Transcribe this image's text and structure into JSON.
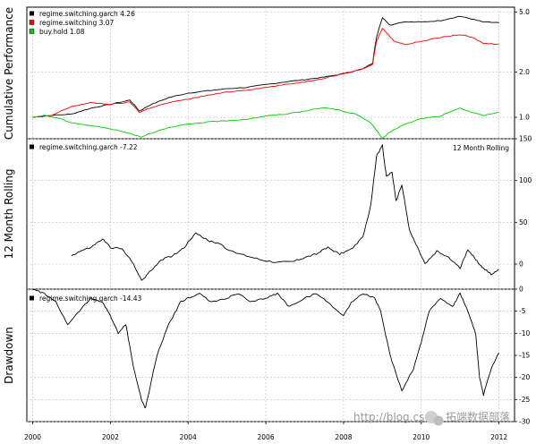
{
  "watermark": {
    "url": "http://blog.csdn",
    "brand": "拓端数据部落"
  },
  "chart_data": [
    {
      "type": "line",
      "ylabel": "Cumulative Performance",
      "log_scale": true,
      "yticks": [
        1.0,
        2.0,
        5.0
      ],
      "ytick_labels": [
        "1.0",
        "2.0",
        "5.0"
      ],
      "ylim": [
        0.72,
        5.4
      ],
      "legend_placement": "top-left",
      "legend": [
        {
          "label": "regime.switching.garch 4.26",
          "color": "#000000"
        },
        {
          "label": "regime.switching 3.07",
          "color": "#ff0000"
        },
        {
          "label": "buy.hold 1.08",
          "color": "#00cc00"
        }
      ],
      "series": [
        {
          "name": "regime.switching.garch",
          "color": "#000000",
          "x": [
            2000.0,
            2000.5,
            2001.0,
            2001.5,
            2002.0,
            2002.5,
            2002.75,
            2003.0,
            2003.5,
            2004.0,
            2004.5,
            2005.0,
            2005.5,
            2006.0,
            2006.5,
            2007.0,
            2007.5,
            2008.0,
            2008.5,
            2008.75,
            2008.85,
            2009.0,
            2009.2,
            2009.5,
            2010.0,
            2010.5,
            2011.0,
            2011.3,
            2011.6,
            2012.0
          ],
          "values": [
            1.0,
            1.03,
            1.05,
            1.15,
            1.22,
            1.3,
            1.1,
            1.2,
            1.35,
            1.45,
            1.5,
            1.55,
            1.58,
            1.65,
            1.72,
            1.78,
            1.85,
            1.95,
            2.1,
            2.3,
            3.4,
            4.6,
            4.1,
            4.3,
            4.3,
            4.4,
            4.7,
            4.5,
            4.3,
            4.26
          ]
        },
        {
          "name": "regime.switching",
          "color": "#ff0000",
          "x": [
            2000.0,
            2000.5,
            2001.0,
            2001.5,
            2002.0,
            2002.5,
            2002.75,
            2003.0,
            2003.5,
            2004.0,
            2004.5,
            2005.0,
            2005.5,
            2006.0,
            2006.5,
            2007.0,
            2007.5,
            2008.0,
            2008.5,
            2008.75,
            2008.85,
            2009.0,
            2009.3,
            2009.6,
            2010.0,
            2010.5,
            2011.0,
            2011.3,
            2011.6,
            2012.0
          ],
          "values": [
            1.0,
            1.03,
            1.18,
            1.25,
            1.22,
            1.26,
            1.08,
            1.15,
            1.25,
            1.32,
            1.4,
            1.47,
            1.52,
            1.58,
            1.65,
            1.72,
            1.82,
            1.95,
            2.1,
            2.25,
            3.2,
            3.9,
            3.2,
            3.05,
            3.2,
            3.4,
            3.55,
            3.4,
            3.1,
            3.07
          ]
        },
        {
          "name": "buy.hold",
          "color": "#00cc00",
          "x": [
            2000.0,
            2000.3,
            2000.7,
            2001.0,
            2001.5,
            2002.0,
            2002.5,
            2002.8,
            2003.0,
            2003.5,
            2004.0,
            2004.5,
            2005.0,
            2005.5,
            2006.0,
            2006.5,
            2007.0,
            2007.5,
            2007.8,
            2008.3,
            2008.7,
            2009.0,
            2009.2,
            2009.5,
            2010.0,
            2010.5,
            2011.0,
            2011.3,
            2011.6,
            2012.0
          ],
          "values": [
            1.0,
            1.03,
            0.98,
            0.92,
            0.88,
            0.84,
            0.78,
            0.74,
            0.78,
            0.85,
            0.9,
            0.93,
            0.95,
            0.97,
            1.02,
            1.05,
            1.1,
            1.16,
            1.13,
            1.05,
            0.92,
            0.72,
            0.8,
            0.88,
            0.98,
            1.02,
            1.15,
            1.08,
            1.03,
            1.08
          ]
        }
      ]
    },
    {
      "type": "line",
      "ylabel": "12 Month Rolling",
      "title": "12 Month Rolling",
      "yticks": [
        0,
        50,
        100,
        150
      ],
      "ytick_labels": [
        "0",
        "50",
        "100",
        "150"
      ],
      "ylim": [
        -30,
        150
      ],
      "legend_placement": "top-left",
      "legend": [
        {
          "label": "regime.switching.garch -7.22",
          "color": "#000000"
        }
      ],
      "series": [
        {
          "name": "regime.switching.garch",
          "color": "#000000",
          "x": [
            2001.0,
            2001.2,
            2001.5,
            2001.8,
            2002.0,
            2002.3,
            2002.6,
            2002.8,
            2003.0,
            2003.3,
            2003.6,
            2003.9,
            2004.2,
            2004.5,
            2004.8,
            2005.1,
            2005.5,
            2005.9,
            2006.3,
            2006.7,
            2007.0,
            2007.3,
            2007.6,
            2007.9,
            2008.2,
            2008.5,
            2008.7,
            2008.85,
            2009.0,
            2009.1,
            2009.25,
            2009.35,
            2009.5,
            2009.7,
            2009.9,
            2010.1,
            2010.4,
            2010.7,
            2011.0,
            2011.2,
            2011.4,
            2011.6,
            2011.8,
            2012.0
          ],
          "values": [
            10,
            15,
            20,
            30,
            20,
            18,
            0,
            -20,
            -10,
            5,
            10,
            20,
            38,
            28,
            25,
            15,
            10,
            5,
            2,
            3,
            8,
            12,
            20,
            12,
            18,
            32,
            70,
            130,
            142,
            105,
            110,
            75,
            95,
            40,
            20,
            0,
            15,
            8,
            -5,
            18,
            5,
            -5,
            -12,
            -7.22
          ]
        }
      ]
    },
    {
      "type": "line",
      "ylabel": "Drawdown",
      "yticks": [
        0,
        -5,
        -10,
        -15,
        -20,
        -25,
        -30
      ],
      "ytick_labels": [
        "0",
        "-5",
        "-10",
        "-15",
        "-20",
        "-25",
        "-30"
      ],
      "ylim": [
        -30,
        0
      ],
      "legend_placement": "top-left",
      "legend": [
        {
          "label": "regime.switching.garch -14.43",
          "color": "#000000"
        }
      ],
      "series": [
        {
          "name": "regime.switching.garch",
          "color": "#000000",
          "x": [
            2000.0,
            2000.3,
            2000.6,
            2000.9,
            2001.2,
            2001.5,
            2001.8,
            2002.0,
            2002.2,
            2002.4,
            2002.5,
            2002.6,
            2002.8,
            2002.9,
            2003.2,
            2003.5,
            2003.8,
            2004.0,
            2004.3,
            2004.6,
            2005.0,
            2005.3,
            2005.6,
            2006.0,
            2006.3,
            2006.6,
            2007.0,
            2007.3,
            2007.6,
            2008.0,
            2008.2,
            2008.5,
            2008.8,
            2008.95,
            2009.2,
            2009.5,
            2009.8,
            2010.0,
            2010.2,
            2010.5,
            2010.8,
            2011.0,
            2011.2,
            2011.4,
            2011.5,
            2011.6,
            2011.8,
            2012.0
          ],
          "values": [
            0,
            -1,
            -3,
            -8,
            -5,
            -2,
            -3,
            -6,
            -10,
            -8,
            -13,
            -18,
            -25,
            -27,
            -15,
            -8,
            -3,
            -2,
            -1,
            -3,
            -2,
            -1,
            -3,
            -2,
            -1,
            -4,
            -2,
            -1,
            -3,
            -6,
            -3,
            -1,
            -2,
            -5,
            -15,
            -23,
            -18,
            -12,
            -5,
            -2,
            -4,
            -1,
            -5,
            -10,
            -20,
            -24,
            -18,
            -14.43
          ]
        }
      ]
    }
  ],
  "xaxis": {
    "range": [
      1999.85,
      2012.4
    ],
    "ticks": [
      2000,
      2002,
      2004,
      2006,
      2008,
      2010,
      2012
    ],
    "tick_labels": [
      "2000",
      "2002",
      "2004",
      "2006",
      "2008",
      "2010",
      "2012"
    ]
  }
}
